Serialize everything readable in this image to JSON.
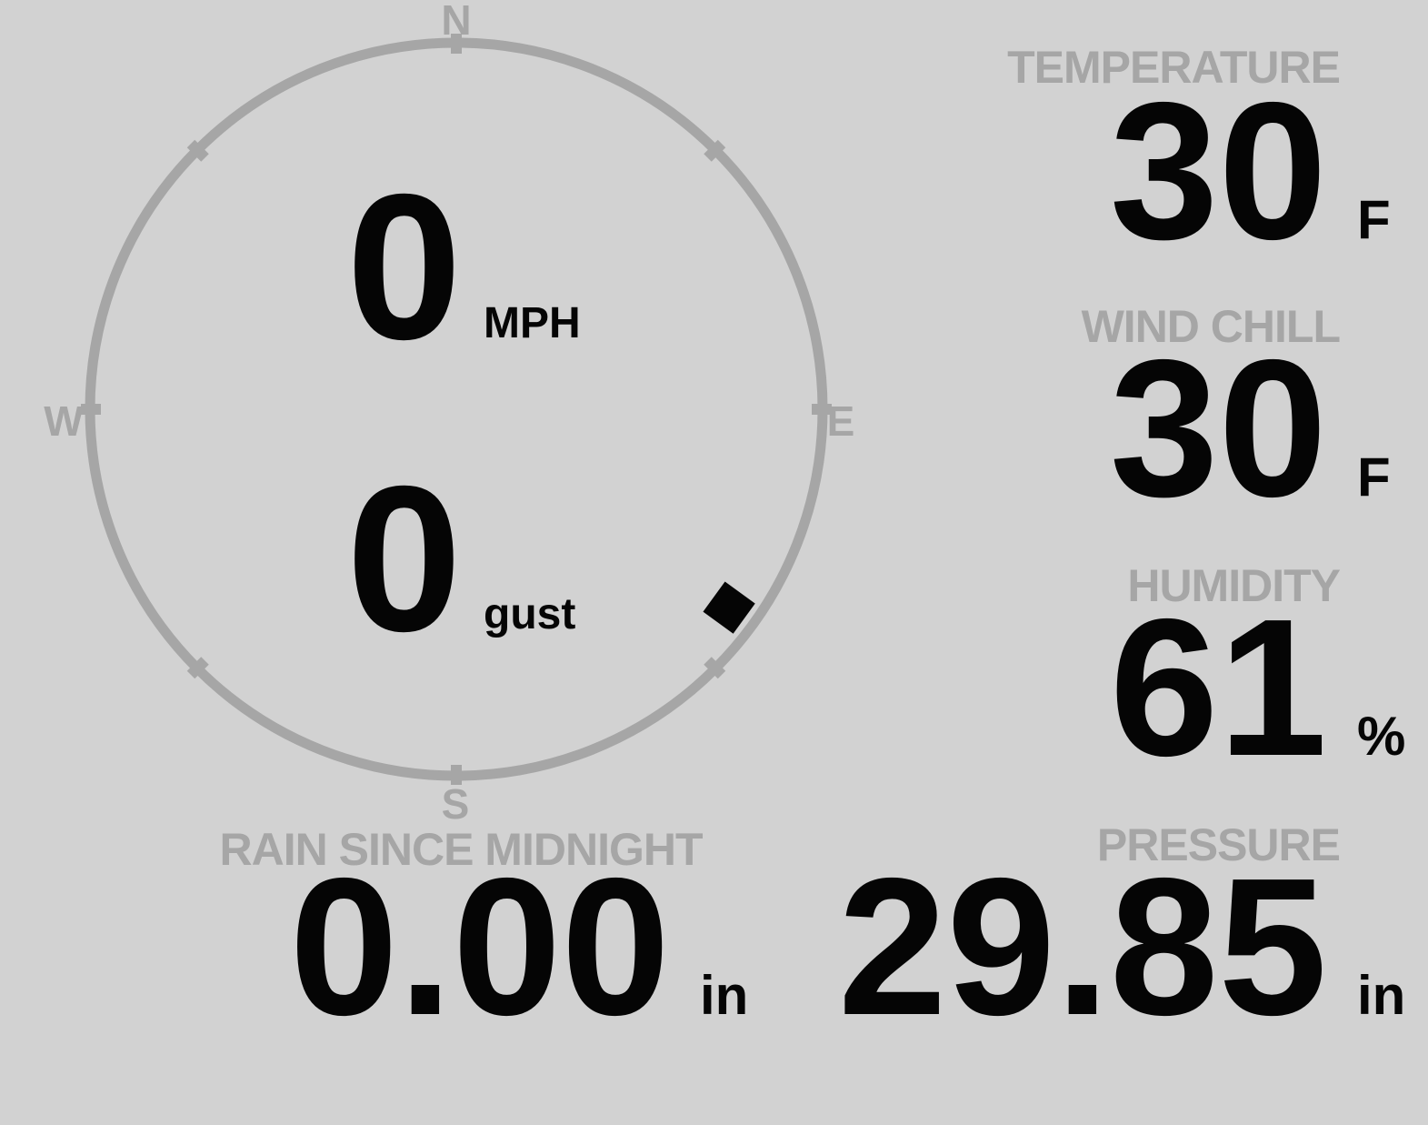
{
  "colors": {
    "background": "#d2d2d2",
    "muted": "#a6a6a6",
    "ink": "#050505"
  },
  "compass": {
    "cardinal_labels": {
      "north": "N",
      "east": "E",
      "south": "S",
      "west": "W"
    },
    "tick_bearings_deg": [
      0,
      45,
      90,
      135,
      180,
      225,
      270,
      315
    ],
    "marker_bearing_deg": 126,
    "wind_speed": {
      "value": "0",
      "unit": "MPH"
    },
    "wind_gust": {
      "value": "0",
      "unit": "gust"
    }
  },
  "readings": {
    "temperature": {
      "label": "TEMPERATURE",
      "value": "30",
      "unit": "F"
    },
    "wind_chill": {
      "label": "WIND CHILL",
      "value": "30",
      "unit": "F"
    },
    "humidity": {
      "label": "HUMIDITY",
      "value": "61",
      "unit": "%"
    },
    "pressure": {
      "label": "PRESSURE",
      "value": "29.85",
      "unit": "in"
    },
    "rain_since_midnight": {
      "label": "RAIN SINCE MIDNIGHT",
      "value": "0.00",
      "unit": "in"
    }
  }
}
